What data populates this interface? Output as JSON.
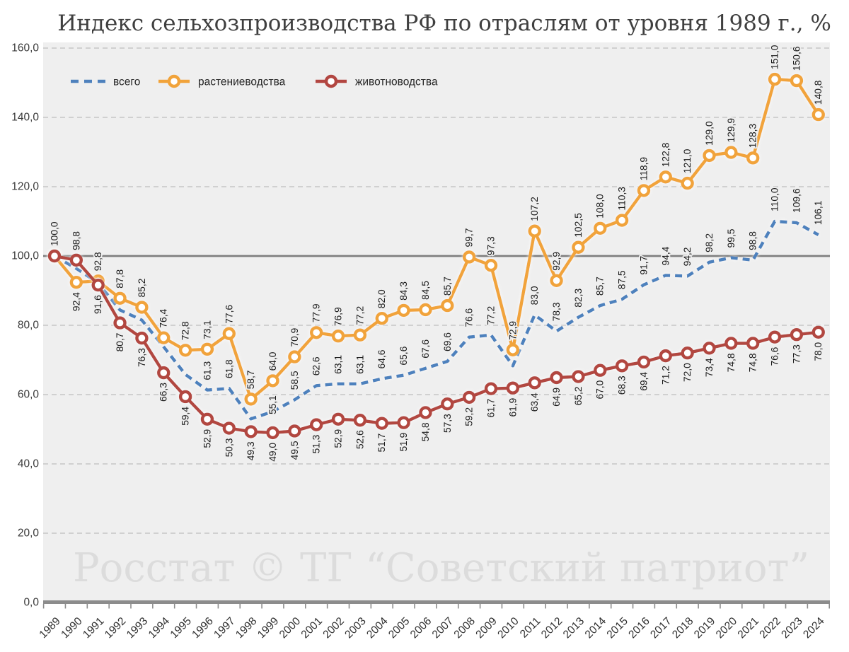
{
  "title": "Индекс сельхозпроизводства РФ по отраслям от уровня 1989 г., %",
  "watermark": "Росстат © ТГ “Советский патриот”",
  "colors": {
    "page_bg": "#ffffff",
    "plot_bg": "#efefef",
    "grid_dashed": "#c6c6c6",
    "reference_line_100": "#7f7f7f",
    "axis_line": "#8c8c8c",
    "series_total_blue": "#4E81BD",
    "series_crops_orange": "#F1A33A",
    "series_livestock_red": "#B24641",
    "marker_fill": "#ffffff",
    "data_label_text": "#1a1a1a",
    "watermark_gray": "#dcdcdc"
  },
  "chart_data": {
    "type": "line",
    "title": "Индекс сельхозпроизводства РФ по отраслям от уровня 1989 г., %",
    "xlabel": "",
    "ylabel": "",
    "ylim": [
      0,
      160
    ],
    "grid": "horizontal dashed every 20, solid gray reference line at 100",
    "legend_position": "top-left inside plot",
    "reference_line": 100,
    "y_tick_values": [
      0,
      20,
      40,
      60,
      80,
      100,
      120,
      140,
      160
    ],
    "y_tick_labels": [
      "0,0",
      "20,0",
      "40,0",
      "60,0",
      "80,0",
      "100,0",
      "120,0",
      "140,0",
      "160,0"
    ],
    "years": [
      1989,
      1990,
      1991,
      1992,
      1993,
      1994,
      1995,
      1996,
      1997,
      1998,
      1999,
      2000,
      2001,
      2002,
      2003,
      2004,
      2005,
      2006,
      2007,
      2008,
      2009,
      2010,
      2011,
      2012,
      2013,
      2014,
      2015,
      2016,
      2017,
      2018,
      2019,
      2020,
      2021,
      2022,
      2023,
      2024
    ],
    "series": [
      {
        "name": "всего",
        "color": "#4E81BD",
        "line": "dashed",
        "marker": false,
        "values": [
          100.0,
          96.4,
          92.2,
          84.4,
          81.5,
          73.8,
          65.8,
          61.3,
          61.8,
          53.0,
          55.1,
          58.5,
          62.6,
          63.1,
          63.1,
          64.6,
          65.6,
          67.6,
          69.6,
          76.6,
          77.2,
          68.3,
          83.0,
          78.3,
          82.3,
          85.7,
          87.5,
          91.7,
          94.4,
          94.2,
          98.2,
          99.5,
          98.8,
          110.0,
          109.6,
          106.1
        ],
        "labels": [
          "",
          "",
          "",
          "",
          "",
          "",
          "",
          "61,3",
          "61,8",
          "",
          "55,1",
          "58,5",
          "62,6",
          "63,1",
          "63,1",
          "64,6",
          "65,6",
          "67,6",
          "69,6",
          "76,6",
          "77,2",
          "",
          "83,0",
          "78,3",
          "82,3",
          "85,7",
          "87,5",
          "91,7",
          "94,4",
          "94,2",
          "98,2",
          "99,5",
          "98,8",
          "110,0",
          "109,6",
          "106,1"
        ],
        "label_side": "above",
        "label_side_exceptions": {},
        "label_offset_exceptions": {
          "1999": -4
        }
      },
      {
        "name": "растениеводства",
        "color": "#F1A33A",
        "line": "solid",
        "marker": true,
        "values": [
          100.0,
          92.4,
          92.8,
          87.8,
          85.2,
          76.4,
          72.8,
          73.1,
          77.6,
          58.7,
          64.0,
          70.9,
          77.9,
          76.9,
          77.2,
          82.0,
          84.3,
          84.5,
          85.7,
          99.7,
          97.3,
          72.9,
          107.2,
          92.9,
          102.5,
          108.0,
          110.3,
          118.9,
          122.8,
          121.0,
          129.0,
          129.9,
          128.3,
          151.0,
          150.6,
          140.8
        ],
        "labels": [
          "100,0",
          "92,4",
          "92,8",
          "87,8",
          "85,2",
          "76,4",
          "72,8",
          "73,1",
          "77,6",
          "58,7",
          "64,0",
          "70,9",
          "77,9",
          "76,9",
          "77,2",
          "82,0",
          "84,3",
          "84,5",
          "85,7",
          "99,7",
          "97,3",
          "72,9",
          "107,2",
          "92,9",
          "102,5",
          "108,0",
          "110,3",
          "118,9",
          "122,8",
          "121,0",
          "129,0",
          "129,9",
          "128,3",
          "151,0",
          "150,6",
          "140,8"
        ],
        "label_side": "above",
        "label_side_exceptions": {
          "1990": "below"
        },
        "label_offset_exceptions": {}
      },
      {
        "name": "животноводства",
        "color": "#B24641",
        "line": "solid",
        "marker": true,
        "values": [
          100.0,
          98.8,
          91.6,
          80.7,
          76.3,
          66.3,
          59.4,
          52.9,
          50.3,
          49.3,
          49.0,
          49.5,
          51.3,
          52.9,
          52.6,
          51.7,
          51.9,
          54.8,
          57.3,
          59.2,
          61.7,
          61.9,
          63.4,
          64.9,
          65.2,
          67.0,
          68.3,
          69.4,
          71.2,
          72.0,
          73.4,
          74.8,
          74.8,
          76.6,
          77.3,
          78.0
        ],
        "labels": [
          "",
          "98,8",
          "91,6",
          "80,7",
          "76,3",
          "66,3",
          "59,4",
          "52,9",
          "50,3",
          "49,3",
          "49,0",
          "49,5",
          "51,3",
          "52,9",
          "52,6",
          "51,7",
          "51,9",
          "54,8",
          "57,3",
          "59,2",
          "61,7",
          "61,9",
          "63,4",
          "64,9",
          "65,2",
          "67,0",
          "68,3",
          "69,4",
          "71,2",
          "72,0",
          "73,4",
          "74,8",
          "74,8",
          "76,6",
          "77,3",
          "78,0"
        ],
        "label_side": "below",
        "label_side_exceptions": {
          "1990": "above"
        },
        "label_offset_exceptions": {}
      }
    ]
  }
}
